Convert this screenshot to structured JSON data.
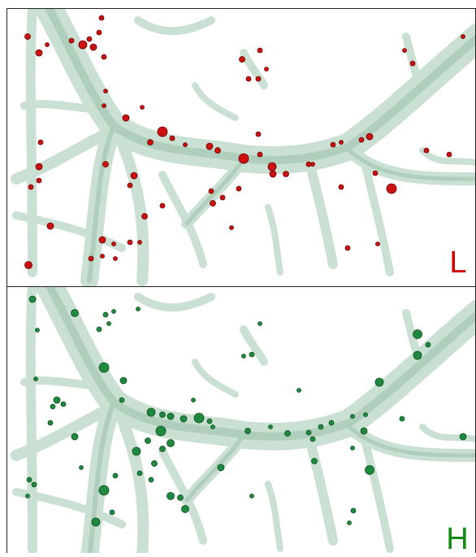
{
  "panels": [
    {
      "label": "L"
    },
    {
      "label": "H"
    }
  ]
}
